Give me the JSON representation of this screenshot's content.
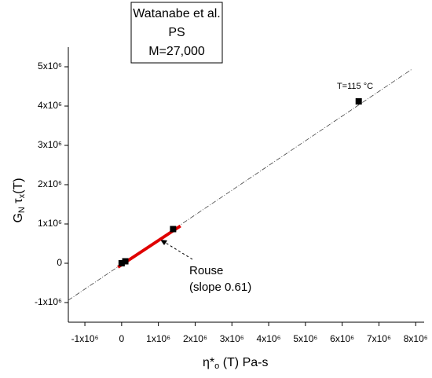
{
  "chart_data": {
    "type": "scatter",
    "box_lines": [
      "Watanabe et al.",
      "PS",
      "M=27,000"
    ],
    "ylabel_parts": [
      "G",
      "N",
      " τ",
      "x",
      "(T)"
    ],
    "xlabel_parts": [
      "η*",
      "o",
      " (T)      Pa-s"
    ],
    "xlim": [
      -1450000,
      8230000
    ],
    "ylim": [
      -1500000,
      5500000
    ],
    "xticks": [
      {
        "value": -1000000,
        "label": "-1x10⁶"
      },
      0,
      {
        "value": 1000000,
        "label": "1x10⁶"
      },
      {
        "value": 2000000,
        "label": "2x10⁶"
      },
      {
        "value": 3000000,
        "label": "3x10⁶"
      },
      {
        "value": 4000000,
        "label": "4x10⁶"
      },
      {
        "value": 5000000,
        "label": "5x10⁶"
      },
      {
        "value": 6000000,
        "label": "6x10⁶"
      },
      {
        "value": 7000000,
        "label": "7x10⁶"
      },
      {
        "value": 8000000,
        "label": "8x10⁶"
      }
    ],
    "yticks": [
      {
        "value": -1000000,
        "label": "-1x10⁶"
      },
      0,
      {
        "value": 1000000,
        "label": "1x10⁶"
      },
      {
        "value": 2000000,
        "label": "2x10⁶"
      },
      {
        "value": 3000000,
        "label": "3x10⁶"
      },
      {
        "value": 4000000,
        "label": "4x10⁶"
      },
      {
        "value": 5000000,
        "label": "5x10⁶"
      }
    ],
    "points": {
      "color": "#000000",
      "x": [
        0,
        100000,
        1400000,
        6450000
      ],
      "values": [
        0,
        50000,
        870000,
        4120000
      ]
    },
    "fit_line": {
      "color": "#444444",
      "x": [
        -1450000,
        7900000
      ],
      "values": [
        -940000,
        4940000
      ]
    },
    "rouse_line": {
      "color": "#e00000",
      "x": [
        -100000,
        1600000
      ],
      "values": [
        -100000,
        950000
      ]
    },
    "annotations": {
      "high_point": "T=115 °C",
      "rouse": [
        "Rouse",
        "(slope 0.61)"
      ]
    }
  }
}
